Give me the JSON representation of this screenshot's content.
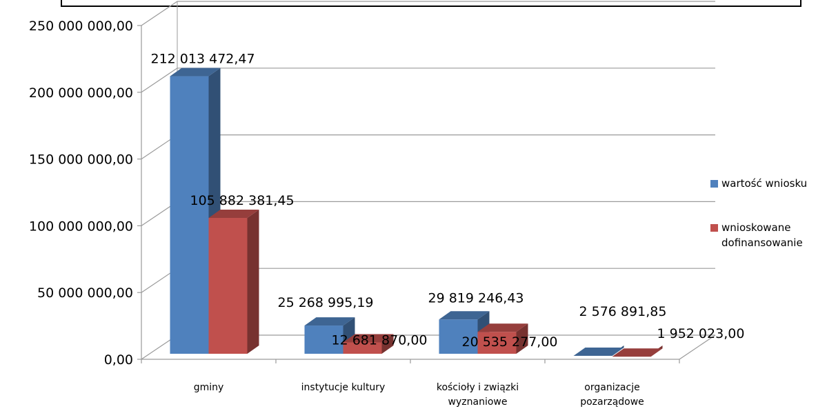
{
  "chart_data": {
    "type": "bar",
    "categories": [
      [
        "gminy"
      ],
      [
        "instytucje kultury"
      ],
      [
        "kościoły i związki",
        "wyznaniowe"
      ],
      [
        "organizacje",
        "pozarządowe"
      ]
    ],
    "series": [
      {
        "name": "wartość wniosku",
        "color": "#4f81bd",
        "values": [
          212013472.47,
          25268995.19,
          29819246.43,
          2576891.85
        ],
        "labels": [
          "212 013 472,47",
          "25 268 995,19",
          "29 819 246,43",
          "2 576 891,85"
        ]
      },
      {
        "name": "wnioskowane dofinansowanie",
        "legend_lines": [
          "wnioskowane",
          "dofinansowanie"
        ],
        "color": "#c0504d",
        "values": [
          105882381.45,
          12681870.0,
          20535277.0,
          1952023.0
        ],
        "labels": [
          "105 882 381,45",
          "12 681 870,00",
          "20 535 277,00",
          "1 952 023,00"
        ]
      }
    ],
    "y_ticks": [
      "0,00",
      "50 000 000,00",
      "100 000 000,00",
      "150 000 000,00",
      "200 000 000,00",
      "250 000 000,00"
    ],
    "ylim": [
      0,
      250000000
    ],
    "grid": true,
    "legend_position": "right",
    "style": "3d-clustered-column"
  }
}
